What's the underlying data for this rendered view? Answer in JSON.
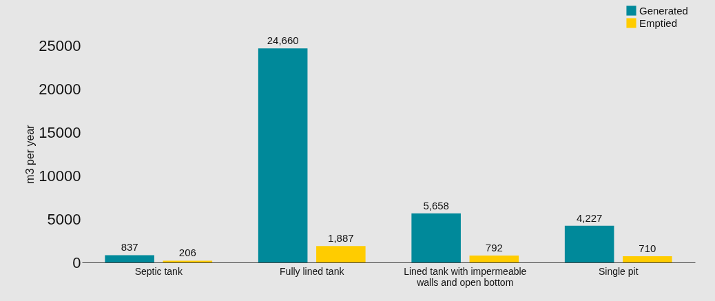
{
  "chart_data": {
    "type": "bar",
    "ylabel": "m3 per year",
    "categories": [
      "Septic tank",
      "Fully  lined tank",
      "Lined tank with impermeable walls and open bottom",
      "Single pit"
    ],
    "series": [
      {
        "name": "Generated",
        "color": "#00899a",
        "values": [
          837,
          24660,
          5658,
          4227
        ],
        "value_labels": [
          "837",
          "24,660",
          "5,658",
          "4,227"
        ]
      },
      {
        "name": "Emptied",
        "color": "#ffcc00",
        "values": [
          206,
          1887,
          792,
          710
        ],
        "value_labels": [
          "206",
          "1,887",
          "792",
          "710"
        ]
      }
    ],
    "ylim": [
      0,
      25000
    ],
    "yticks": [
      0,
      5000,
      10000,
      15000,
      20000,
      25000
    ],
    "grid": false,
    "legend": "top right"
  }
}
